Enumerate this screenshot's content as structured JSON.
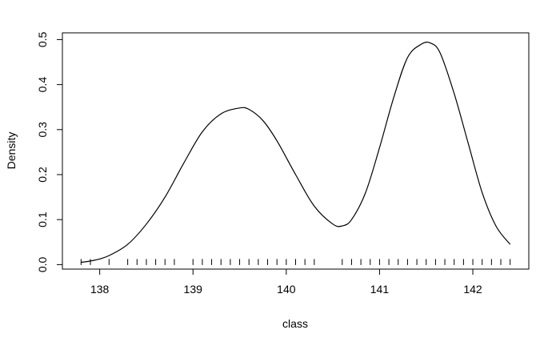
{
  "chart_data": {
    "type": "line",
    "title": "",
    "xlabel": "class",
    "ylabel": "Density",
    "xlim": [
      137.6,
      142.6
    ],
    "ylim": [
      -0.01,
      0.515
    ],
    "x_ticks": [
      138,
      139,
      140,
      141,
      142
    ],
    "x_tick_labels": [
      "138",
      "139",
      "140",
      "141",
      "142"
    ],
    "y_ticks": [
      0.0,
      0.1,
      0.2,
      0.3,
      0.4,
      0.5
    ],
    "y_tick_labels": [
      "0.0",
      "0.1",
      "0.2",
      "0.3",
      "0.4",
      "0.5"
    ],
    "grid": false,
    "series": [
      {
        "name": "density",
        "x": [
          137.8,
          137.95,
          138.1,
          138.3,
          138.5,
          138.7,
          138.9,
          139.1,
          139.3,
          139.5,
          139.6,
          139.75,
          139.9,
          140.1,
          140.3,
          140.5,
          140.6,
          140.7,
          140.85,
          141.0,
          141.15,
          141.3,
          141.45,
          141.55,
          141.65,
          141.8,
          141.95,
          142.1,
          142.25,
          142.4
        ],
        "y": [
          0.005,
          0.01,
          0.02,
          0.045,
          0.09,
          0.15,
          0.225,
          0.295,
          0.335,
          0.348,
          0.345,
          0.32,
          0.275,
          0.2,
          0.13,
          0.09,
          0.086,
          0.1,
          0.16,
          0.26,
          0.37,
          0.46,
          0.49,
          0.492,
          0.47,
          0.38,
          0.27,
          0.16,
          0.085,
          0.045
        ]
      }
    ],
    "rug": [
      137.8,
      137.9,
      138.1,
      138.3,
      138.4,
      138.5,
      138.6,
      138.7,
      138.8,
      139.0,
      139.1,
      139.2,
      139.3,
      139.4,
      139.5,
      139.6,
      139.7,
      139.8,
      139.9,
      140.0,
      140.1,
      140.2,
      140.3,
      140.6,
      140.7,
      140.8,
      140.9,
      141.0,
      141.1,
      141.2,
      141.3,
      141.4,
      141.5,
      141.6,
      141.7,
      141.8,
      141.9,
      142.0,
      142.1,
      142.2,
      142.3,
      142.4
    ]
  }
}
